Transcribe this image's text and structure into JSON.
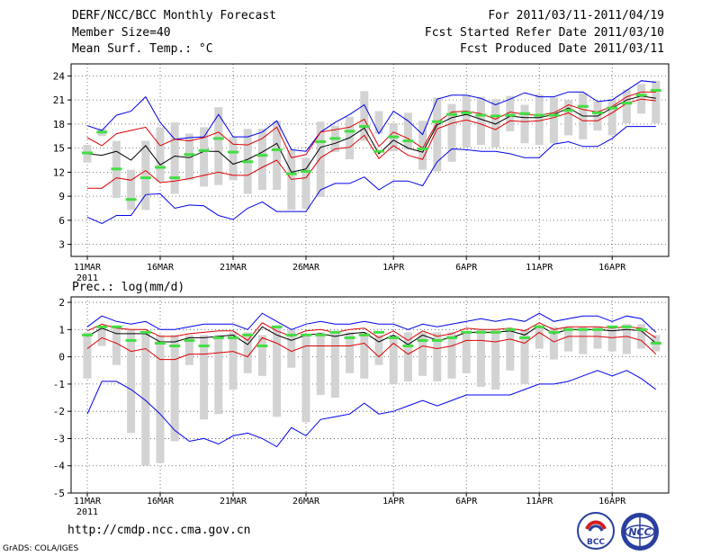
{
  "header": {
    "title": "DERF/NCC/BCC Monthly Forecast",
    "member_size": "Member Size=40",
    "variable": "Mean Surf. Temp.: °C",
    "period": "For 2011/03/11-2011/04/19",
    "started": "Fcst Started Refer Date 2011/03/10",
    "produced": "Fcst Produced Date 2011/03/11"
  },
  "footer": {
    "url": "http://cmdp.ncc.cma.gov.cn",
    "grads": "GrADS: COLA/IGES",
    "logo_bcc_text": "BCC",
    "logo_ncc_text": "NCC"
  },
  "colors": {
    "box": "#d3d3d3",
    "green": "#44dd44",
    "red": "#dd0000",
    "blue": "#0000ee",
    "mean": "#000000",
    "grid": "#555555"
  },
  "chart_data": [
    {
      "type": "box-line",
      "title": "Mean Surf. Temp.: °C",
      "x_tick_labels": [
        "11MAR",
        "16MAR",
        "21MAR",
        "26MAR",
        "1APR",
        "6APR",
        "11APR",
        "16APR"
      ],
      "x_tick_indices": [
        0,
        5,
        10,
        15,
        21,
        26,
        31,
        36
      ],
      "x_year_label": "2011",
      "ylim": [
        1.5,
        25.5
      ],
      "yticks": [
        3,
        6,
        9,
        12,
        15,
        18,
        21,
        24
      ],
      "box_low": [
        13.2,
        16.5,
        8.8,
        7.3,
        7.3,
        10.8,
        9.3,
        11.0,
        10.2,
        10.4,
        11.0,
        9.3,
        9.8,
        9.8,
        7.3,
        7.4,
        8.9,
        14.5,
        13.6,
        15.9,
        16.8,
        14.6,
        14.8,
        12.3,
        12.1,
        13.3,
        15.1,
        15.4,
        15.1,
        17.1,
        15.6,
        15.4,
        15.6,
        16.6,
        16.1,
        17.2,
        16.6,
        18.1,
        19.3,
        18.1
      ],
      "box_high": [
        15.4,
        17.4,
        15.9,
        12.3,
        15.9,
        17.6,
        18.2,
        16.8,
        17.6,
        20.1,
        16.4,
        17.4,
        17.4,
        18.4,
        14.8,
        13.8,
        18.3,
        17.8,
        18.9,
        22.1,
        19.6,
        18.1,
        19.4,
        18.4,
        21.3,
        20.5,
        21.6,
        21.4,
        21.1,
        21.5,
        20.4,
        21.7,
        21.3,
        21.0,
        21.9,
        20.8,
        21.1,
        22.3,
        23.0,
        23.4
      ],
      "green": [
        14.4,
        17.0,
        12.4,
        8.6,
        11.3,
        12.6,
        11.3,
        14.2,
        14.7,
        16.2,
        14.5,
        13.3,
        14.1,
        14.8,
        11.8,
        12.1,
        15.8,
        16.2,
        17.1,
        17.7,
        14.6,
        16.4,
        15.9,
        14.9,
        18.3,
        19.2,
        19.4,
        19.1,
        19.0,
        19.1,
        19.3,
        19.1,
        19.1,
        19.7,
        20.2,
        19.4,
        20.0,
        20.6,
        21.6,
        22.2
      ],
      "mean": [
        14.3,
        14.1,
        14.6,
        13.5,
        15.3,
        12.9,
        14.0,
        13.8,
        14.6,
        14.6,
        13.0,
        13.6,
        14.5,
        15.6,
        12.0,
        12.4,
        15.1,
        15.6,
        16.3,
        17.5,
        14.3,
        16.0,
        15.0,
        14.5,
        17.9,
        18.8,
        19.2,
        18.6,
        18.0,
        19.0,
        18.8,
        18.8,
        19.2,
        20.0,
        19.0,
        19.0,
        20.0,
        21.0,
        21.5,
        21.2
      ],
      "red_high": [
        16.3,
        15.3,
        16.8,
        17.2,
        17.6,
        15.3,
        16.1,
        15.9,
        16.3,
        17.0,
        15.5,
        15.4,
        16.2,
        17.6,
        13.8,
        14.2,
        17.0,
        17.3,
        17.6,
        18.6,
        15.2,
        17.0,
        16.2,
        15.0,
        18.2,
        19.5,
        19.6,
        19.3,
        18.6,
        19.5,
        19.2,
        19.1,
        19.4,
        20.4,
        19.8,
        19.5,
        20.2,
        21.4,
        22.0,
        22.0
      ],
      "red_low": [
        10.0,
        10.0,
        11.3,
        11.0,
        12.2,
        10.7,
        10.9,
        11.2,
        11.6,
        12.0,
        11.6,
        11.6,
        12.6,
        13.5,
        11.1,
        11.3,
        13.8,
        14.9,
        15.1,
        16.6,
        13.7,
        15.3,
        14.1,
        13.6,
        17.4,
        18.1,
        18.5,
        18.0,
        17.3,
        18.4,
        18.3,
        18.4,
        18.8,
        19.4,
        18.4,
        18.4,
        19.4,
        20.6,
        21.1,
        20.9
      ],
      "blue_high": [
        17.8,
        17.2,
        19.1,
        19.6,
        21.4,
        18.2,
        16.1,
        16.3,
        16.4,
        19.2,
        16.4,
        16.4,
        17.0,
        18.4,
        14.8,
        14.6,
        17.0,
        18.2,
        19.2,
        20.4,
        16.8,
        19.6,
        18.4,
        16.7,
        21.1,
        21.6,
        21.6,
        21.2,
        20.4,
        21.1,
        21.9,
        21.4,
        21.4,
        22.0,
        22.0,
        20.8,
        21.0,
        22.2,
        23.4,
        23.2
      ],
      "blue_low": [
        6.4,
        5.6,
        6.6,
        6.6,
        9.2,
        9.3,
        7.5,
        7.9,
        7.8,
        6.6,
        6.1,
        7.5,
        8.3,
        7.1,
        7.1,
        7.1,
        9.8,
        10.6,
        10.6,
        11.4,
        9.8,
        10.9,
        10.9,
        10.3,
        13.3,
        14.9,
        14.8,
        14.6,
        14.6,
        14.3,
        13.8,
        13.8,
        15.5,
        15.8,
        15.2,
        15.2,
        16.2,
        17.7,
        17.7,
        17.7
      ]
    },
    {
      "type": "box-line",
      "title": "Prec.: log(mm/d)",
      "x_tick_labels": [
        "11MAR",
        "16MAR",
        "21MAR",
        "26MAR",
        "1APR",
        "6APR",
        "11APR",
        "16APR"
      ],
      "x_tick_indices": [
        0,
        5,
        10,
        15,
        21,
        26,
        31,
        36
      ],
      "x_year_label": "2011",
      "ylim": [
        -5,
        2.2
      ],
      "yticks": [
        -5,
        -4,
        -3,
        -2,
        -1,
        0,
        1,
        2
      ],
      "box_low": [
        -0.8,
        0.4,
        -0.3,
        -2.8,
        -4.0,
        -3.9,
        -3.1,
        -0.3,
        -2.3,
        -2.1,
        -1.2,
        -0.6,
        -0.7,
        -2.2,
        -0.4,
        -2.4,
        -1.4,
        -1.5,
        -0.6,
        -0.8,
        -0.3,
        -1.0,
        -0.9,
        -0.7,
        -0.9,
        -0.8,
        -0.6,
        -1.1,
        -1.2,
        -0.5,
        -1.0,
        0.3,
        -0.1,
        0.2,
        0.1,
        0.3,
        0.2,
        0.1,
        0.3,
        0.2
      ],
      "box_high": [
        0.9,
        1.1,
        1.1,
        1.0,
        0.9,
        0.8,
        0.8,
        0.8,
        0.8,
        0.8,
        0.9,
        0.9,
        0.8,
        1.1,
        1.0,
        0.8,
        0.9,
        0.9,
        0.9,
        0.9,
        0.8,
        0.8,
        0.9,
        0.9,
        0.9,
        0.9,
        0.9,
        1.0,
        1.0,
        1.0,
        1.0,
        1.1,
        1.1,
        1.1,
        1.1,
        1.1,
        1.1,
        1.2,
        1.2,
        0.8
      ],
      "green": [
        0.8,
        1.1,
        1.1,
        0.6,
        0.9,
        0.5,
        0.4,
        0.6,
        0.4,
        0.7,
        0.7,
        0.8,
        0.4,
        1.1,
        0.8,
        0.8,
        0.8,
        0.9,
        0.7,
        0.8,
        0.9,
        0.7,
        0.4,
        0.6,
        0.6,
        0.7,
        0.9,
        0.9,
        0.9,
        1.0,
        0.7,
        1.1,
        0.9,
        1.0,
        1.0,
        1.0,
        1.1,
        1.1,
        1.0,
        0.5
      ],
      "mean": [
        0.75,
        1.05,
        0.85,
        0.85,
        0.85,
        0.55,
        0.55,
        0.7,
        0.7,
        0.75,
        0.8,
        0.45,
        1.1,
        0.8,
        0.6,
        0.8,
        0.85,
        0.75,
        0.85,
        0.9,
        0.55,
        0.8,
        0.45,
        0.8,
        0.6,
        0.7,
        0.9,
        0.9,
        0.9,
        0.95,
        0.8,
        1.15,
        0.85,
        1.0,
        1.0,
        1.0,
        0.95,
        1.0,
        0.95,
        0.5
      ],
      "red_high": [
        0.95,
        1.2,
        1.05,
        1.0,
        1.0,
        0.75,
        0.75,
        0.85,
        0.9,
        0.95,
        0.95,
        0.6,
        1.25,
        0.95,
        0.75,
        0.95,
        1.0,
        0.9,
        1.0,
        1.05,
        0.7,
        0.95,
        0.6,
        0.95,
        0.75,
        0.85,
        1.05,
        1.0,
        1.0,
        1.05,
        0.95,
        1.25,
        1.0,
        1.1,
        1.1,
        1.1,
        1.05,
        1.1,
        1.05,
        0.7
      ],
      "red_low": [
        0.3,
        0.7,
        0.5,
        0.2,
        0.3,
        -0.1,
        -0.1,
        0.1,
        0.1,
        0.15,
        0.2,
        0.0,
        0.7,
        0.5,
        0.2,
        0.4,
        0.4,
        0.4,
        0.4,
        0.5,
        0.0,
        0.5,
        0.1,
        0.4,
        0.3,
        0.4,
        0.6,
        0.6,
        0.55,
        0.65,
        0.5,
        0.9,
        0.55,
        0.75,
        0.75,
        0.75,
        0.7,
        0.75,
        0.6,
        0.1
      ],
      "blue_high": [
        1.1,
        1.5,
        1.3,
        1.2,
        1.3,
        1.0,
        1.0,
        1.1,
        1.2,
        1.2,
        1.2,
        1.0,
        1.6,
        1.3,
        1.0,
        1.2,
        1.3,
        1.2,
        1.2,
        1.3,
        1.2,
        1.2,
        1.0,
        1.2,
        1.1,
        1.2,
        1.3,
        1.4,
        1.3,
        1.4,
        1.3,
        1.6,
        1.3,
        1.4,
        1.5,
        1.5,
        1.3,
        1.5,
        1.4,
        0.9
      ],
      "blue_low": [
        -2.1,
        -0.9,
        -0.9,
        -1.2,
        -1.6,
        -2.1,
        -2.7,
        -3.1,
        -3.0,
        -3.2,
        -2.9,
        -2.8,
        -3.0,
        -3.3,
        -2.6,
        -2.9,
        -2.3,
        -2.2,
        -2.1,
        -1.7,
        -2.1,
        -2.0,
        -1.8,
        -1.6,
        -1.8,
        -1.6,
        -1.4,
        -1.4,
        -1.4,
        -1.4,
        -1.2,
        -1.0,
        -1.0,
        -0.9,
        -0.7,
        -0.5,
        -0.7,
        -0.5,
        -0.8,
        -1.2
      ]
    }
  ]
}
